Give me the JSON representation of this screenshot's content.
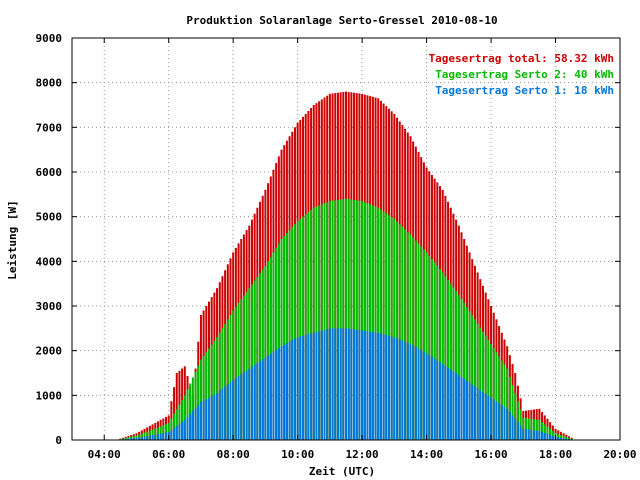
{
  "chart_data": {
    "type": "bar",
    "title": "Produktion Solaranlage Serto-Gressel 2010-08-10",
    "xlabel": "Zeit (UTC)",
    "ylabel": "Leistung [W]",
    "ylim": [
      0,
      9000
    ],
    "xlim": [
      "03:00",
      "20:00"
    ],
    "y_ticks": [
      0,
      1000,
      2000,
      3000,
      4000,
      5000,
      6000,
      7000,
      8000,
      9000
    ],
    "x_ticks": [
      "04:00",
      "06:00",
      "08:00",
      "10:00",
      "12:00",
      "14:00",
      "16:00",
      "18:00",
      "20:00"
    ],
    "grid": true,
    "legend_position": "top-right",
    "bar_interval_minutes": 5,
    "legend": [
      {
        "label": "Tagesertrag total: 58.32 kWh",
        "color": "#cc0000"
      },
      {
        "label": "Tagesertrag Serto 2: 40 kWh",
        "color": "#00bb00"
      },
      {
        "label": "Tagesertrag Serto 1: 18 kWh",
        "color": "#0077dd"
      }
    ],
    "series": [
      {
        "name": "Tagesertrag total: 58.32 kWh",
        "color": "#cc0000",
        "points": [
          [
            "04:30",
            30
          ],
          [
            "05:00",
            150
          ],
          [
            "05:30",
            350
          ],
          [
            "06:00",
            550
          ],
          [
            "06:15",
            1500
          ],
          [
            "06:30",
            1650
          ],
          [
            "06:45",
            1000
          ],
          [
            "07:00",
            2800
          ],
          [
            "07:15",
            3100
          ],
          [
            "07:30",
            3400
          ],
          [
            "08:00",
            4200
          ],
          [
            "08:30",
            4800
          ],
          [
            "09:00",
            5600
          ],
          [
            "09:30",
            6500
          ],
          [
            "10:00",
            7100
          ],
          [
            "10:30",
            7500
          ],
          [
            "11:00",
            7750
          ],
          [
            "11:30",
            7800
          ],
          [
            "12:00",
            7750
          ],
          [
            "12:30",
            7650
          ],
          [
            "13:00",
            7300
          ],
          [
            "13:30",
            6800
          ],
          [
            "14:00",
            6100
          ],
          [
            "14:30",
            5600
          ],
          [
            "15:00",
            4800
          ],
          [
            "15:30",
            3900
          ],
          [
            "16:00",
            3000
          ],
          [
            "16:30",
            2100
          ],
          [
            "16:45",
            1500
          ],
          [
            "17:00",
            650
          ],
          [
            "17:30",
            700
          ],
          [
            "18:00",
            250
          ],
          [
            "18:30",
            50
          ]
        ]
      },
      {
        "name": "Tagesertrag Serto 2: 40 kWh",
        "color": "#00bb00",
        "points": [
          [
            "04:30",
            20
          ],
          [
            "05:00",
            100
          ],
          [
            "05:30",
            230
          ],
          [
            "06:00",
            380
          ],
          [
            "06:30",
            1000
          ],
          [
            "07:00",
            1800
          ],
          [
            "07:30",
            2300
          ],
          [
            "08:00",
            2900
          ],
          [
            "08:30",
            3400
          ],
          [
            "09:00",
            3900
          ],
          [
            "09:30",
            4500
          ],
          [
            "10:00",
            4900
          ],
          [
            "10:30",
            5200
          ],
          [
            "11:00",
            5350
          ],
          [
            "11:30",
            5400
          ],
          [
            "12:00",
            5350
          ],
          [
            "12:30",
            5200
          ],
          [
            "13:00",
            4950
          ],
          [
            "13:30",
            4600
          ],
          [
            "14:00",
            4200
          ],
          [
            "14:30",
            3750
          ],
          [
            "15:00",
            3250
          ],
          [
            "15:30",
            2700
          ],
          [
            "16:00",
            2150
          ],
          [
            "16:30",
            1600
          ],
          [
            "17:00",
            500
          ],
          [
            "17:30",
            450
          ],
          [
            "18:00",
            150
          ],
          [
            "18:30",
            30
          ]
        ]
      },
      {
        "name": "Tagesertrag Serto 1: 18 kWh",
        "color": "#0077dd",
        "points": [
          [
            "04:30",
            10
          ],
          [
            "05:00",
            50
          ],
          [
            "05:30",
            110
          ],
          [
            "06:00",
            180
          ],
          [
            "06:30",
            450
          ],
          [
            "07:00",
            850
          ],
          [
            "07:30",
            1050
          ],
          [
            "08:00",
            1350
          ],
          [
            "08:30",
            1600
          ],
          [
            "09:00",
            1850
          ],
          [
            "09:30",
            2100
          ],
          [
            "10:00",
            2300
          ],
          [
            "10:30",
            2400
          ],
          [
            "11:00",
            2500
          ],
          [
            "11:30",
            2500
          ],
          [
            "12:00",
            2450
          ],
          [
            "12:30",
            2400
          ],
          [
            "13:00",
            2300
          ],
          [
            "13:30",
            2150
          ],
          [
            "14:00",
            1950
          ],
          [
            "14:30",
            1700
          ],
          [
            "15:00",
            1450
          ],
          [
            "15:30",
            1200
          ],
          [
            "16:00",
            950
          ],
          [
            "16:30",
            700
          ],
          [
            "17:00",
            250
          ],
          [
            "17:30",
            200
          ],
          [
            "18:00",
            70
          ],
          [
            "18:30",
            10
          ]
        ]
      }
    ]
  }
}
